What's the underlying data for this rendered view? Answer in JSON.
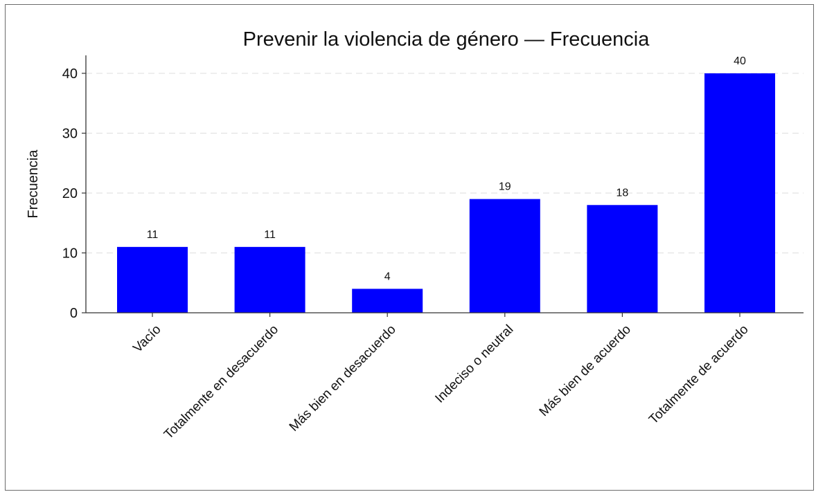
{
  "colors": {
    "bar": "#0000ff",
    "axis": "#333333",
    "grid": "#e2e2e2"
  },
  "chart_data": {
    "type": "bar",
    "title": "Prevenir la violencia de género — Frecuencia",
    "xlabel": "",
    "ylabel": "Frecuencia",
    "ylim": [
      0,
      43
    ],
    "yticks": [
      0,
      10,
      20,
      30,
      40
    ],
    "grid": "horizontal-dashed",
    "legend": "none",
    "categories": [
      "Vacío",
      "Totalmente en desacuerdo",
      "Más bien en desacuerdo",
      "Indeciso o neutral",
      "Más bien de acuerdo",
      "Totalmente de acuerdo"
    ],
    "values": [
      11,
      11,
      4,
      19,
      18,
      40
    ],
    "data_labels": [
      "11",
      "11",
      "4",
      "19",
      "18",
      "40"
    ]
  }
}
